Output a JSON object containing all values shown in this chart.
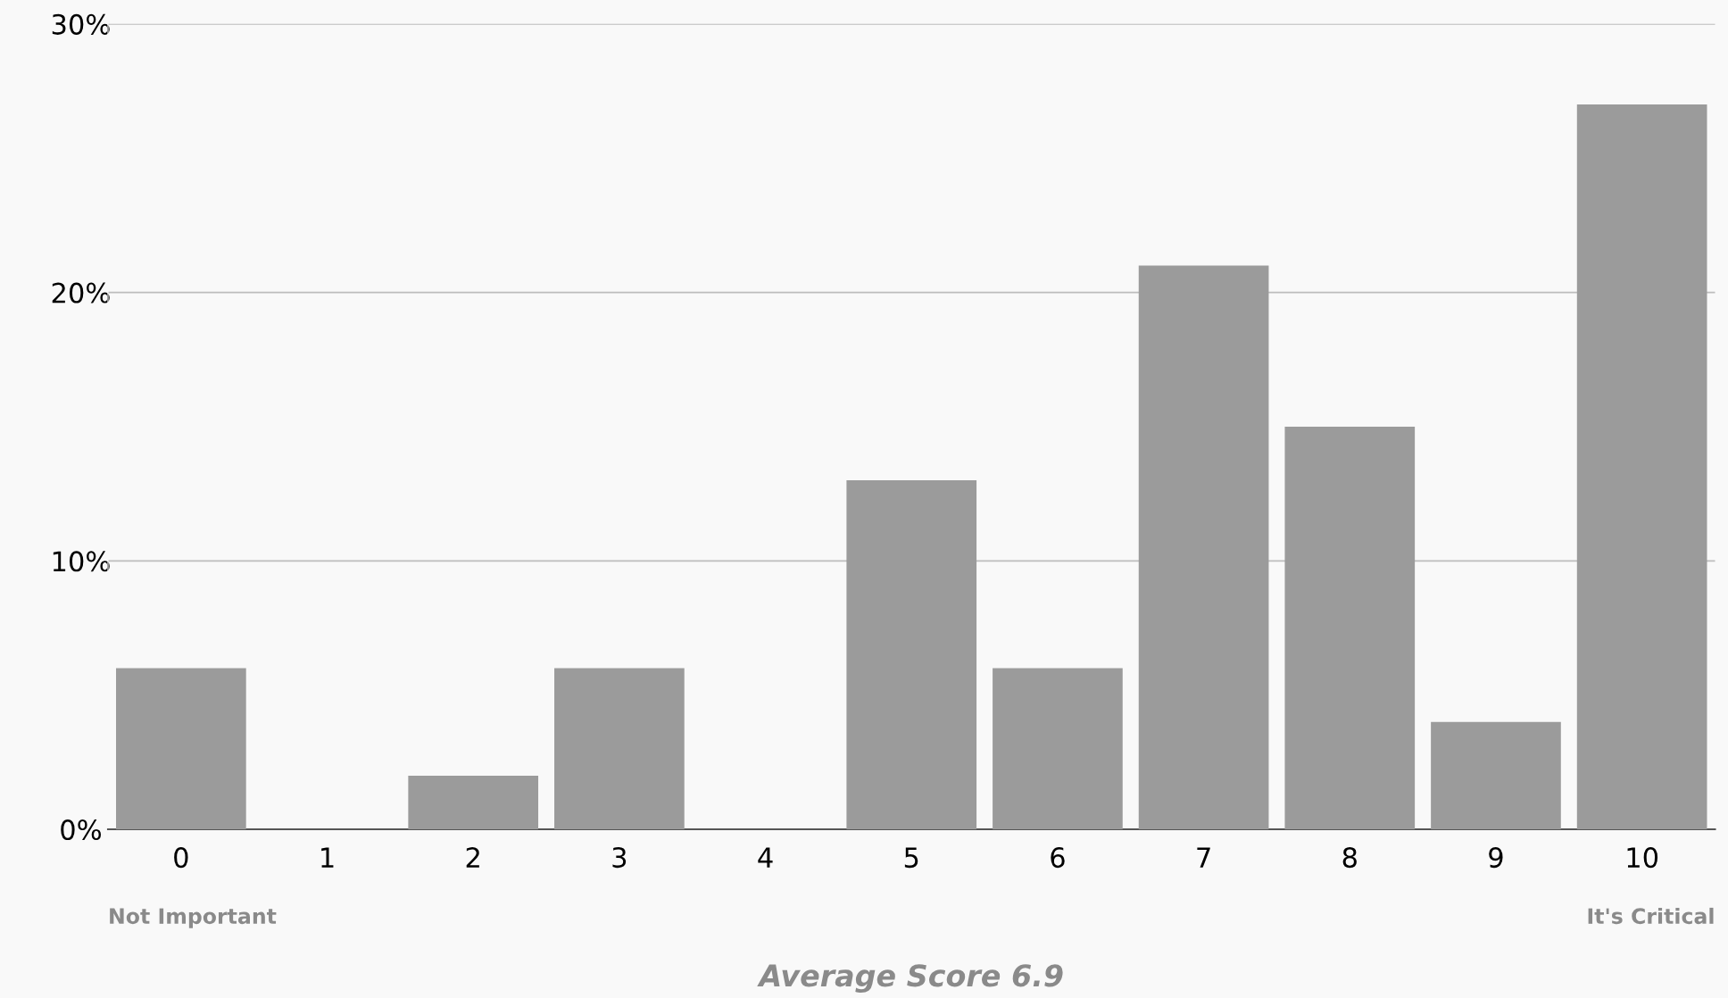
{
  "chart_data": {
    "type": "bar",
    "categories": [
      "0",
      "1",
      "2",
      "3",
      "4",
      "5",
      "6",
      "7",
      "8",
      "9",
      "10"
    ],
    "values": [
      6,
      0,
      2,
      6,
      0,
      13,
      6,
      21,
      15,
      4,
      27
    ],
    "color": "#9b9b9b",
    "ylim": [
      0,
      30
    ],
    "yticks": [
      {
        "value": 0,
        "label": "0%"
      },
      {
        "value": 10,
        "label": "10%"
      },
      {
        "value": 20,
        "label": "20%"
      },
      {
        "value": 30,
        "label": "30%"
      }
    ],
    "grid": "y",
    "legend": false,
    "annotations": [
      "Not Important",
      "It's Critical",
      "Average Score 6.9"
    ]
  }
}
